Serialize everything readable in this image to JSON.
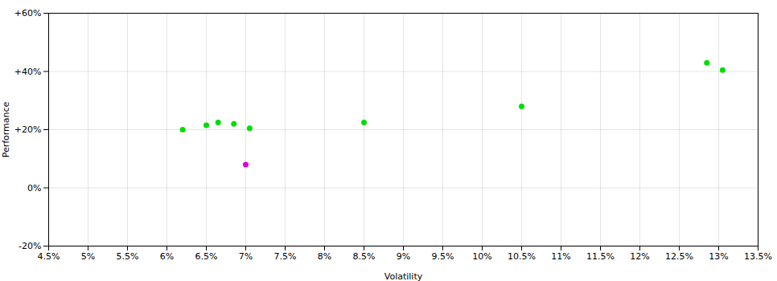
{
  "chart_data": {
    "type": "scatter",
    "xlabel": "Volatility",
    "ylabel": "Performance",
    "series": [
      {
        "color": "#00dd00",
        "marker": "circle",
        "x": [
          6.2,
          6.5,
          6.65,
          6.85,
          7.05,
          8.5,
          10.5,
          12.85,
          13.05
        ],
        "values": [
          20,
          21.5,
          22.5,
          22,
          20.5,
          22.5,
          28,
          43,
          40.5
        ]
      },
      {
        "color": "#dd00dd",
        "marker": "circle",
        "x": [
          7.0
        ],
        "values": [
          8
        ]
      }
    ],
    "xlim": [
      4.5,
      13.5
    ],
    "xticks": [
      {
        "value": 4.5,
        "label": "4.5%"
      },
      {
        "value": 5.0,
        "label": "5%"
      },
      {
        "value": 5.5,
        "label": "5.5%"
      },
      {
        "value": 6.0,
        "label": "6%"
      },
      {
        "value": 6.5,
        "label": "6.5%"
      },
      {
        "value": 7.0,
        "label": "7%"
      },
      {
        "value": 7.5,
        "label": "7.5%"
      },
      {
        "value": 8.0,
        "label": "8%"
      },
      {
        "value": 8.5,
        "label": "8.5%"
      },
      {
        "value": 9.0,
        "label": "9%"
      },
      {
        "value": 9.5,
        "label": "9.5%"
      },
      {
        "value": 10.0,
        "label": "10%"
      },
      {
        "value": 10.5,
        "label": "10.5%"
      },
      {
        "value": 11.0,
        "label": "11%"
      },
      {
        "value": 11.5,
        "label": "11.5%"
      },
      {
        "value": 12.0,
        "label": "12%"
      },
      {
        "value": 12.5,
        "label": "12.5%"
      },
      {
        "value": 13.0,
        "label": "13%"
      },
      {
        "value": 13.5,
        "label": "13.5%"
      }
    ],
    "ylim": [
      -20,
      60
    ],
    "yticks": [
      {
        "value": -20,
        "label": "-20%"
      },
      {
        "value": 0,
        "label": "0%"
      },
      {
        "value": 20,
        "label": "+20%"
      },
      {
        "value": 40,
        "label": "+40%"
      },
      {
        "value": 60,
        "label": "+60%"
      }
    ],
    "grid": true
  }
}
